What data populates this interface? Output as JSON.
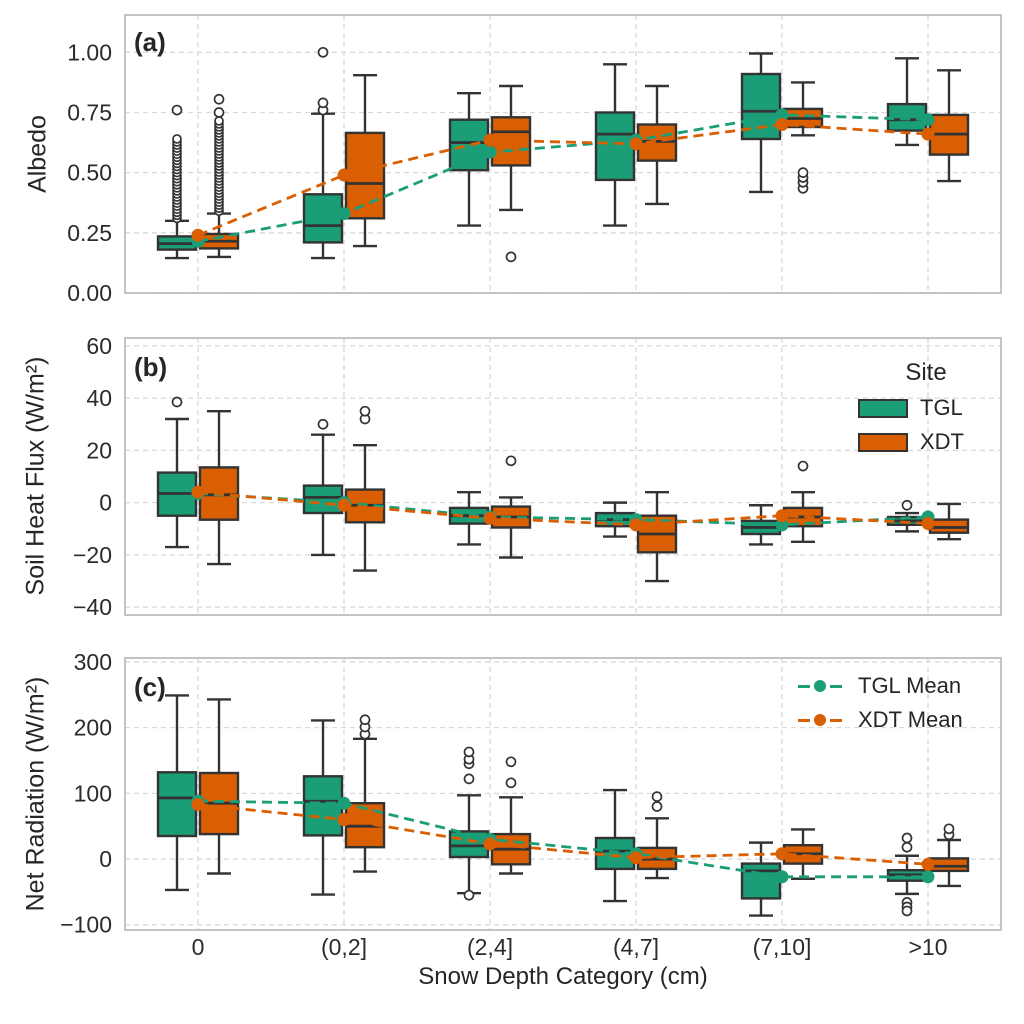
{
  "figure": {
    "background": "#ffffff",
    "xlabel": "Snow Depth Category (cm)",
    "categories": [
      "0",
      "(0,2]",
      "(2,4]",
      "(4,7]",
      "(7,10]",
      ">10"
    ],
    "colors": {
      "tgl": "#1b9e77",
      "xdt": "#d95f02",
      "box_edge": "#333333",
      "grid": "#d9d9d9",
      "spine": "#bdbdbd",
      "text": "#2b2b2b",
      "outlier_fill": "#ffffff"
    },
    "site_legend": {
      "title": "Site",
      "items": [
        {
          "label": "TGL",
          "color_key": "tgl"
        },
        {
          "label": "XDT",
          "color_key": "xdt"
        }
      ]
    },
    "mean_legend": {
      "items": [
        {
          "label": "TGL Mean",
          "color_key": "tgl"
        },
        {
          "label": "XDT Mean",
          "color_key": "xdt"
        }
      ]
    }
  },
  "chart_data": [
    {
      "type": "box",
      "panel_label": "(a)",
      "ylabel": "Albedo",
      "ylim": [
        0,
        1.155
      ],
      "yticks": [
        0.0,
        0.25,
        0.5,
        0.75,
        1.0
      ],
      "ytick_labels": [
        "0.00",
        "0.25",
        "0.50",
        "0.75",
        "1.00"
      ],
      "grid": true,
      "series": [
        {
          "name": "TGL",
          "color": "#1b9e77",
          "boxes": [
            {
              "whisker_low": 0.145,
              "q1": 0.18,
              "median": 0.205,
              "q3": 0.235,
              "whisker_high": 0.3,
              "outlier_band": [
                0.31,
                0.64
              ],
              "outliers": [
                0.76
              ]
            },
            {
              "whisker_low": 0.145,
              "q1": 0.21,
              "median": 0.28,
              "q3": 0.41,
              "whisker_high": 0.745,
              "outliers": [
                0.76,
                0.79,
                1.0
              ]
            },
            {
              "whisker_low": 0.28,
              "q1": 0.51,
              "median": 0.625,
              "q3": 0.72,
              "whisker_high": 0.83,
              "outliers": []
            },
            {
              "whisker_low": 0.28,
              "q1": 0.47,
              "median": 0.66,
              "q3": 0.75,
              "whisker_high": 0.95,
              "outliers": []
            },
            {
              "whisker_low": 0.42,
              "q1": 0.64,
              "median": 0.755,
              "q3": 0.91,
              "whisker_high": 0.995,
              "outliers": []
            },
            {
              "whisker_low": 0.615,
              "q1": 0.675,
              "median": 0.72,
              "q3": 0.785,
              "whisker_high": 0.975,
              "outliers": []
            }
          ]
        },
        {
          "name": "XDT",
          "color": "#d95f02",
          "boxes": [
            {
              "whisker_low": 0.15,
              "q1": 0.185,
              "median": 0.215,
              "q3": 0.245,
              "whisker_high": 0.33,
              "outlier_band": [
                0.34,
                0.715
              ],
              "outliers": [
                0.75,
                0.805
              ]
            },
            {
              "whisker_low": 0.195,
              "q1": 0.31,
              "median": 0.455,
              "q3": 0.665,
              "whisker_high": 0.905,
              "outliers": []
            },
            {
              "whisker_low": 0.345,
              "q1": 0.53,
              "median": 0.67,
              "q3": 0.73,
              "whisker_high": 0.86,
              "outliers": [
                0.15
              ]
            },
            {
              "whisker_low": 0.37,
              "q1": 0.55,
              "median": 0.63,
              "q3": 0.7,
              "whisker_high": 0.86,
              "outliers": []
            },
            {
              "whisker_low": 0.655,
              "q1": 0.69,
              "median": 0.725,
              "q3": 0.765,
              "whisker_high": 0.875,
              "outliers": [
                0.435,
                0.46,
                0.48,
                0.5
              ]
            },
            {
              "whisker_low": 0.465,
              "q1": 0.575,
              "median": 0.66,
              "q3": 0.74,
              "whisker_high": 0.925,
              "outliers": []
            }
          ]
        }
      ],
      "means": [
        {
          "name": "TGL Mean",
          "color": "#1b9e77",
          "values": [
            0.215,
            0.33,
            0.585,
            0.635,
            0.74,
            0.72
          ]
        },
        {
          "name": "XDT Mean",
          "color": "#d95f02",
          "values": [
            0.24,
            0.49,
            0.635,
            0.62,
            0.7,
            0.66
          ]
        }
      ]
    },
    {
      "type": "box",
      "panel_label": "(b)",
      "ylabel": "Soil Heat Flux (W/m²)",
      "ylim": [
        -43,
        63
      ],
      "yticks": [
        60,
        40,
        20,
        0,
        -20,
        -40
      ],
      "ytick_labels": [
        "60",
        "40",
        "20",
        "0",
        "−20",
        "−40"
      ],
      "grid": true,
      "series": [
        {
          "name": "TGL",
          "color": "#1b9e77",
          "boxes": [
            {
              "whisker_low": -17,
              "q1": -5,
              "median": 3.5,
              "q3": 11.5,
              "whisker_high": 32,
              "outliers": [
                38.5
              ]
            },
            {
              "whisker_low": -20,
              "q1": -4,
              "median": 2,
              "q3": 6.5,
              "whisker_high": 26,
              "outliers": [
                30
              ]
            },
            {
              "whisker_low": -16,
              "q1": -8,
              "median": -5,
              "q3": -2,
              "whisker_high": 4,
              "outliers": []
            },
            {
              "whisker_low": -13,
              "q1": -9,
              "median": -6.5,
              "q3": -4,
              "whisker_high": 0,
              "outliers": []
            },
            {
              "whisker_low": -16,
              "q1": -12,
              "median": -9.5,
              "q3": -7,
              "whisker_high": -1,
              "outliers": []
            },
            {
              "whisker_low": -11,
              "q1": -8.5,
              "median": -7,
              "q3": -5.5,
              "whisker_high": -4,
              "outliers": [
                -1
              ]
            }
          ]
        },
        {
          "name": "XDT",
          "color": "#d95f02",
          "boxes": [
            {
              "whisker_low": -23.5,
              "q1": -6.5,
              "median": 3,
              "q3": 13.5,
              "whisker_high": 35,
              "outliers": []
            },
            {
              "whisker_low": -26,
              "q1": -7.5,
              "median": -1,
              "q3": 5,
              "whisker_high": 22,
              "outliers": [
                32,
                35
              ]
            },
            {
              "whisker_low": -21,
              "q1": -9.5,
              "median": -5.5,
              "q3": -1.5,
              "whisker_high": 2,
              "outliers": [
                16
              ]
            },
            {
              "whisker_low": -30,
              "q1": -19,
              "median": -12,
              "q3": -5,
              "whisker_high": 4,
              "outliers": []
            },
            {
              "whisker_low": -15,
              "q1": -9,
              "median": -5.5,
              "q3": -2,
              "whisker_high": 4,
              "outliers": [
                14
              ]
            },
            {
              "whisker_low": -14,
              "q1": -11.5,
              "median": -9.5,
              "q3": -6.5,
              "whisker_high": -0.5,
              "outliers": []
            }
          ]
        }
      ],
      "means": [
        {
          "name": "TGL Mean",
          "color": "#1b9e77",
          "values": [
            3.5,
            0,
            -5.5,
            -6.5,
            -8.5,
            -5.5
          ]
        },
        {
          "name": "XDT Mean",
          "color": "#d95f02",
          "values": [
            4,
            -1,
            -6,
            -8.5,
            -5,
            -8
          ]
        }
      ]
    },
    {
      "type": "box",
      "panel_label": "(c)",
      "ylabel": "Net Radiation (W/m²)",
      "ylim": [
        -108,
        306
      ],
      "yticks": [
        300,
        200,
        100,
        0,
        -100
      ],
      "ytick_labels": [
        "300",
        "200",
        "100",
        "0",
        "−100"
      ],
      "grid": true,
      "show_xticklabels": true,
      "series": [
        {
          "name": "TGL",
          "color": "#1b9e77",
          "boxes": [
            {
              "whisker_low": -47,
              "q1": 35,
              "median": 93,
              "q3": 132,
              "whisker_high": 249,
              "outliers": []
            },
            {
              "whisker_low": -54,
              "q1": 36,
              "median": 88,
              "q3": 126,
              "whisker_high": 211,
              "outliers": []
            },
            {
              "whisker_low": -52,
              "q1": 3,
              "median": 20,
              "q3": 42,
              "whisker_high": 97,
              "outliers": [
                122,
                145,
                152,
                163,
                -55
              ]
            },
            {
              "whisker_low": -64,
              "q1": -15,
              "median": 12,
              "q3": 32,
              "whisker_high": 105,
              "outliers": []
            },
            {
              "whisker_low": -86,
              "q1": -60,
              "median": -18,
              "q3": -7,
              "whisker_high": 25,
              "outliers": []
            },
            {
              "whisker_low": -53,
              "q1": -33,
              "median": -24,
              "q3": -17,
              "whisker_high": 5,
              "outliers": [
                18,
                32,
                -66,
                -73,
                -79
              ]
            }
          ]
        },
        {
          "name": "XDT",
          "color": "#d95f02",
          "boxes": [
            {
              "whisker_low": -22,
              "q1": 38,
              "median": 85,
              "q3": 131,
              "whisker_high": 243,
              "outliers": []
            },
            {
              "whisker_low": -19,
              "q1": 18,
              "median": 50,
              "q3": 85,
              "whisker_high": 183,
              "outliers": [
                190,
                201,
                212
              ]
            },
            {
              "whisker_low": -22,
              "q1": -8,
              "median": 15,
              "q3": 38,
              "whisker_high": 94,
              "outliers": [
                116,
                148
              ]
            },
            {
              "whisker_low": -29,
              "q1": -15,
              "median": 0,
              "q3": 17,
              "whisker_high": 62,
              "outliers": [
                80,
                95
              ]
            },
            {
              "whisker_low": -30,
              "q1": -7,
              "median": 8,
              "q3": 21,
              "whisker_high": 45,
              "outliers": []
            },
            {
              "whisker_low": -41,
              "q1": -18,
              "median": -11,
              "q3": 1,
              "whisker_high": 29,
              "outliers": [
                37,
                46
              ]
            }
          ]
        }
      ],
      "means": [
        {
          "name": "TGL Mean",
          "color": "#1b9e77",
          "values": [
            88,
            85,
            30,
            8,
            -27,
            -27
          ]
        },
        {
          "name": "XDT Mean",
          "color": "#d95f02",
          "values": [
            83,
            60,
            23,
            2,
            8,
            -8
          ]
        }
      ]
    }
  ]
}
